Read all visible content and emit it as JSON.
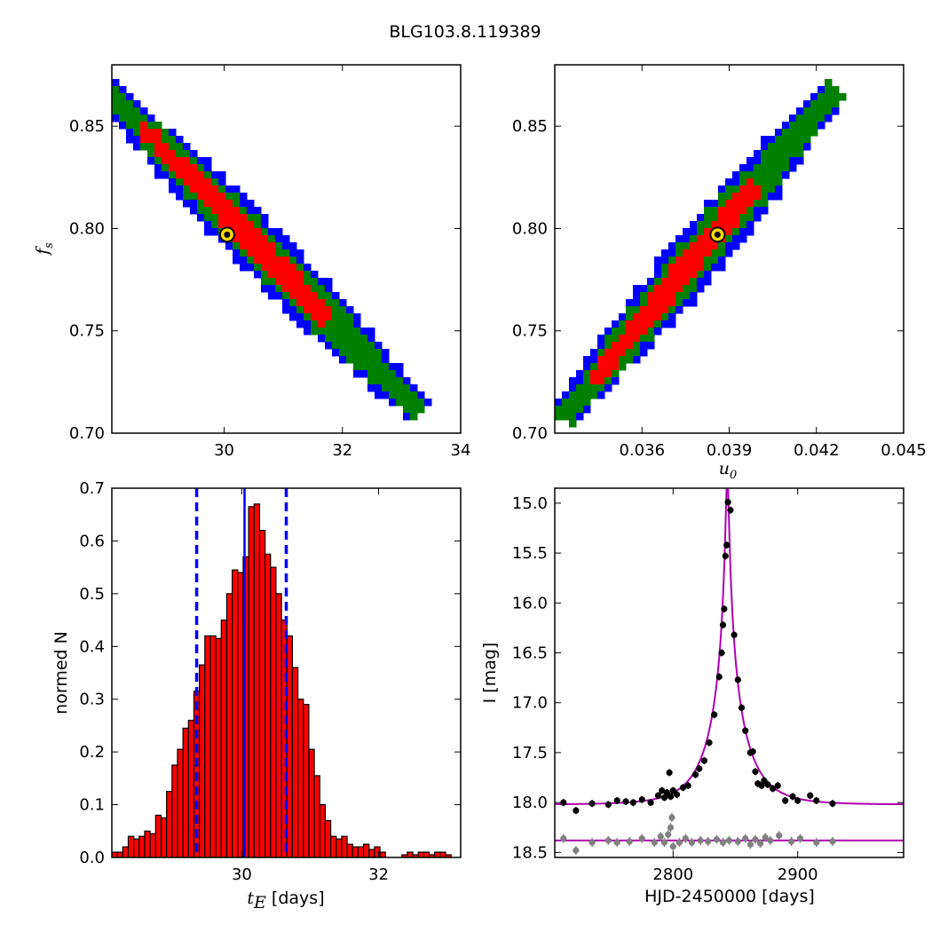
{
  "figure": {
    "title": "BLG103.8.119389"
  },
  "colors": {
    "outer": "#0000ff",
    "middle": "#008000",
    "inner": "#ff0000",
    "best_fit": "#ffd700",
    "hist_fill": "#ff0000",
    "hist_line": "#0000ff",
    "model": "#b000b0",
    "data": "#000000",
    "residual": "#808080"
  },
  "chart_data": [
    {
      "id": "tE_fs",
      "type": "heatmap",
      "xlabel": "",
      "ylabel": "f_s",
      "xlim": [
        28.1,
        34.0
      ],
      "ylim": [
        0.7,
        0.88
      ],
      "xticks": [
        "30",
        "32",
        "34"
      ],
      "yticks": [
        "0.70",
        "0.75",
        "0.80",
        "0.85"
      ],
      "contour_band": {
        "x_start": 28.1,
        "y_start": 0.865,
        "x_end": 33.2,
        "y_end": 0.713
      },
      "best_fit": {
        "x": 30.05,
        "y": 0.797
      }
    },
    {
      "id": "u0_fs",
      "type": "heatmap",
      "xlabel": "u_0",
      "ylabel": "",
      "xlim": [
        0.033,
        0.045
      ],
      "ylim": [
        0.7,
        0.88
      ],
      "xticks": [
        "0.036",
        "0.039",
        "0.042",
        "0.045"
      ],
      "yticks": [
        "0.70",
        "0.75",
        "0.80",
        "0.85"
      ],
      "contour_band": {
        "x_start": 0.0334,
        "y_start": 0.71,
        "x_end": 0.0425,
        "y_end": 0.866
      },
      "best_fit": {
        "x": 0.0386,
        "y": 0.797
      }
    },
    {
      "id": "tE_hist",
      "type": "bar",
      "xlabel": "t_E [days]",
      "ylabel": "normed N",
      "xlim": [
        28.1,
        33.2
      ],
      "ylim": [
        0.0,
        0.7
      ],
      "xticks": [
        "30",
        "32"
      ],
      "yticks": [
        "0.0",
        "0.1",
        "0.2",
        "0.3",
        "0.4",
        "0.5",
        "0.6",
        "0.7"
      ],
      "bins_x": [
        28.14,
        28.22,
        28.3,
        28.38,
        28.46,
        28.54,
        28.62,
        28.7,
        28.78,
        28.86,
        28.94,
        29.02,
        29.1,
        29.18,
        29.26,
        29.34,
        29.42,
        29.5,
        29.58,
        29.66,
        29.74,
        29.82,
        29.9,
        29.98,
        30.06,
        30.14,
        30.22,
        30.3,
        30.38,
        30.46,
        30.54,
        30.62,
        30.7,
        30.78,
        30.86,
        30.94,
        31.02,
        31.1,
        31.18,
        31.26,
        31.34,
        31.42,
        31.5,
        31.58,
        31.66,
        31.74,
        31.82,
        31.9,
        31.98,
        32.06,
        32.14,
        32.22,
        32.3,
        32.38,
        32.46,
        32.54,
        32.62,
        32.7,
        32.78,
        32.86,
        32.94,
        33.02,
        33.1
      ],
      "values": [
        0.01,
        0.01,
        0.02,
        0.04,
        0.035,
        0.04,
        0.05,
        0.045,
        0.08,
        0.075,
        0.125,
        0.175,
        0.205,
        0.245,
        0.26,
        0.315,
        0.365,
        0.42,
        0.42,
        0.415,
        0.45,
        0.5,
        0.545,
        0.54,
        0.57,
        0.665,
        0.67,
        0.62,
        0.575,
        0.55,
        0.5,
        0.45,
        0.42,
        0.36,
        0.3,
        0.29,
        0.205,
        0.155,
        0.1,
        0.07,
        0.04,
        0.035,
        0.04,
        0.025,
        0.02,
        0.02,
        0.025,
        0.015,
        0.02,
        0.01,
        0.0,
        0.0,
        0.0,
        0.005,
        0.01,
        0.005,
        0.01,
        0.01,
        0.005,
        0.01,
        0.01,
        0.005,
        0.0
      ],
      "bin_width": 0.08,
      "best_line": 30.04,
      "dashed_lines": [
        29.34,
        30.65
      ]
    },
    {
      "id": "lightcurve",
      "type": "scatter",
      "xlabel": "HJD-2450000 [days]",
      "ylabel": "I [mag]",
      "xlim": [
        2705,
        2985
      ],
      "ylim": [
        18.55,
        14.85
      ],
      "xticks": [
        "2800",
        "2900"
      ],
      "yticks": [
        "15.0",
        "15.5",
        "16.0",
        "16.5",
        "17.0",
        "17.5",
        "18.0",
        "18.5"
      ],
      "model": {
        "t0": 2843.5,
        "tE": 30.0,
        "u0": 0.0386,
        "fs": 0.797,
        "base_mag": 18.02
      },
      "residual_level": 18.38,
      "points": [
        [
          2712,
          18.0
        ],
        [
          2722,
          18.08
        ],
        [
          2735,
          18.01
        ],
        [
          2748,
          18.02
        ],
        [
          2755,
          17.98
        ],
        [
          2762,
          17.99
        ],
        [
          2768,
          18.0
        ],
        [
          2775,
          17.97
        ],
        [
          2782,
          18.0
        ],
        [
          2788,
          17.93
        ],
        [
          2791,
          17.88
        ],
        [
          2793,
          17.95
        ],
        [
          2795,
          17.9
        ],
        [
          2797,
          17.7
        ],
        [
          2798,
          17.94
        ],
        [
          2800,
          17.88
        ],
        [
          2803,
          17.92
        ],
        [
          2808,
          17.85
        ],
        [
          2812,
          17.83
        ],
        [
          2818,
          17.72
        ],
        [
          2821,
          17.66
        ],
        [
          2825,
          17.58
        ],
        [
          2829,
          17.4
        ],
        [
          2833,
          17.12
        ],
        [
          2837,
          16.74
        ],
        [
          2839,
          16.5
        ],
        [
          2840,
          16.22
        ],
        [
          2841,
          16.06
        ],
        [
          2842,
          15.53
        ],
        [
          2843,
          15.42
        ],
        [
          2844,
          14.99
        ],
        [
          2846,
          15.07
        ],
        [
          2849,
          16.32
        ],
        [
          2852,
          16.77
        ],
        [
          2855,
          17.05
        ],
        [
          2858,
          17.28
        ],
        [
          2862,
          17.5
        ],
        [
          2864,
          17.49
        ],
        [
          2866,
          17.69
        ],
        [
          2868,
          17.81
        ],
        [
          2871,
          17.83
        ],
        [
          2873,
          17.78
        ],
        [
          2876,
          17.82
        ],
        [
          2880,
          17.86
        ],
        [
          2884,
          17.83
        ],
        [
          2890,
          17.98
        ],
        [
          2896,
          17.94
        ],
        [
          2900,
          17.98
        ],
        [
          2910,
          17.93
        ],
        [
          2915,
          17.98
        ],
        [
          2928,
          18.01
        ]
      ],
      "residual_points": [
        [
          2712,
          18.36
        ],
        [
          2722,
          18.48
        ],
        [
          2735,
          18.4
        ],
        [
          2748,
          18.38
        ],
        [
          2755,
          18.4
        ],
        [
          2765,
          18.39
        ],
        [
          2775,
          18.36
        ],
        [
          2785,
          18.4
        ],
        [
          2790,
          18.34
        ],
        [
          2793,
          18.4
        ],
        [
          2796,
          18.32
        ],
        [
          2798,
          18.25
        ],
        [
          2799,
          18.15
        ],
        [
          2800,
          18.44
        ],
        [
          2805,
          18.4
        ],
        [
          2810,
          18.36
        ],
        [
          2815,
          18.4
        ],
        [
          2822,
          18.38
        ],
        [
          2828,
          18.39
        ],
        [
          2835,
          18.37
        ],
        [
          2840,
          18.4
        ],
        [
          2845,
          18.38
        ],
        [
          2852,
          18.39
        ],
        [
          2858,
          18.36
        ],
        [
          2862,
          18.42
        ],
        [
          2866,
          18.37
        ],
        [
          2870,
          18.41
        ],
        [
          2874,
          18.35
        ],
        [
          2878,
          18.38
        ],
        [
          2885,
          18.33
        ],
        [
          2895,
          18.39
        ],
        [
          2902,
          18.36
        ],
        [
          2915,
          18.4
        ],
        [
          2928,
          18.39
        ]
      ]
    }
  ]
}
